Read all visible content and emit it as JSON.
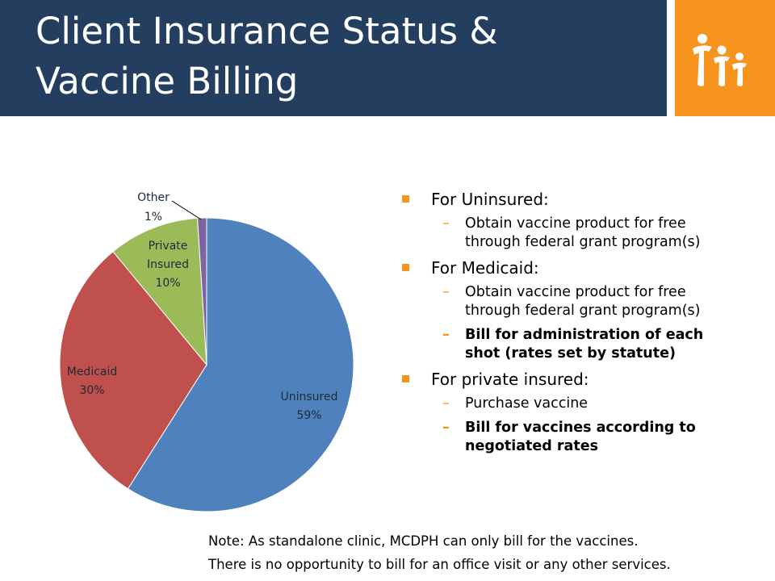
{
  "header": {
    "title_line1": "Client Insurance Status &",
    "title_line2": "Vaccine Billing",
    "logo_icon": "three-people-logo-icon",
    "colors": {
      "header_bg": "#233e5e",
      "logo_bg": "#f7941d",
      "bullet": "#f7941d"
    }
  },
  "chart_data": {
    "type": "pie",
    "slices": [
      {
        "name": "Uninsured",
        "value": 59,
        "label": "59%",
        "color": "#4f81bd"
      },
      {
        "name": "Medicaid",
        "value": 30,
        "label": "30%",
        "color": "#c0504d"
      },
      {
        "name": "Private Insured",
        "value": 10,
        "label": "10%",
        "color": "#9bbb59"
      },
      {
        "name": "Other",
        "value": 1,
        "label": "1%",
        "color": "#8064a2"
      }
    ],
    "legend": "none"
  },
  "bullets": {
    "uninsured": {
      "heading": "For Uninsured:",
      "items": [
        "Obtain vaccine product for free through federal grant program(s)"
      ]
    },
    "medicaid": {
      "heading": "For Medicaid:",
      "items": [
        "Obtain vaccine product for free through federal grant program(s)",
        "Bill for administration  of each shot (rates set by statute)"
      ]
    },
    "private": {
      "heading": "For private insured:",
      "items": [
        "Purchase vaccine",
        "Bill for vaccines according to negotiated rates"
      ]
    }
  },
  "note": {
    "line1": "Note: As standalone clinic, MCDPH can only bill for the vaccines.",
    "line2": "There is no opportunity to bill for an office visit or any other services."
  }
}
